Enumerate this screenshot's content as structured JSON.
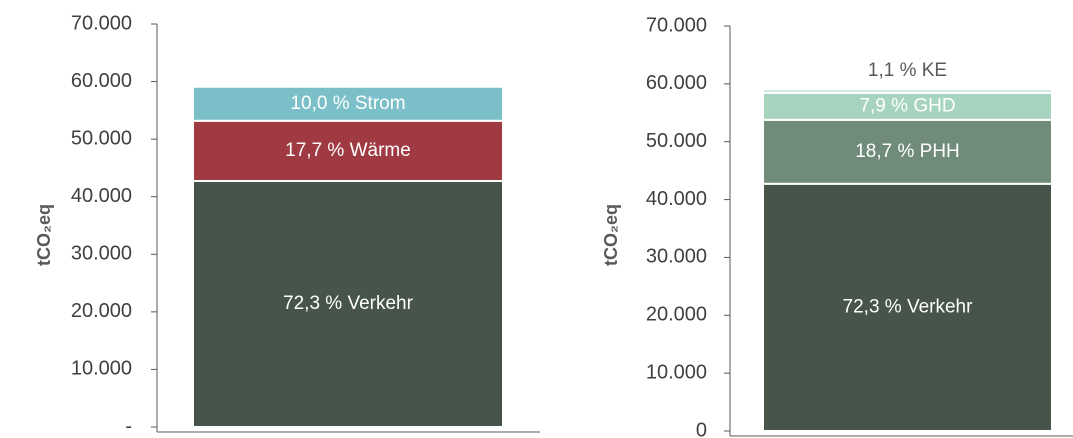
{
  "chart_data": [
    {
      "type": "stacked-bar",
      "y_label": "tCO₂eq",
      "categories": [
        null
      ],
      "ylim": [
        0,
        70000
      ],
      "yticks": [
        {
          "value": 0,
          "label": "-"
        },
        {
          "value": 10000,
          "label": "10.000"
        },
        {
          "value": 20000,
          "label": "20.000"
        },
        {
          "value": 30000,
          "label": "30.000"
        },
        {
          "value": 40000,
          "label": "40.000"
        },
        {
          "value": 50000,
          "label": "50.000"
        },
        {
          "value": 60000,
          "label": "60.000"
        },
        {
          "value": 70000,
          "label": "70.000"
        }
      ],
      "series": [
        {
          "name": "Verkehr",
          "color": "#46544a",
          "values": [
            42730
          ],
          "value_labels": [
            "72,3 % Verkehr"
          ]
        },
        {
          "name": "Wärme",
          "color": "#a03a42",
          "values": [
            10460
          ],
          "value_labels": [
            "17,7 % Wärme"
          ]
        },
        {
          "name": "Strom",
          "color": "#7bbfc8",
          "values": [
            5910
          ],
          "value_labels": [
            "10,0 % Strom"
          ]
        }
      ]
    },
    {
      "type": "stacked-bar",
      "y_label": "tCO₂eq",
      "categories": [
        null
      ],
      "ylim": [
        0,
        70000
      ],
      "yticks": [
        0,
        {
          "value": 10000,
          "label": "10.000"
        },
        {
          "value": 20000,
          "label": "20.000"
        },
        {
          "value": 30000,
          "label": "30.000"
        },
        {
          "value": 40000,
          "label": "40.000"
        },
        {
          "value": 50000,
          "label": "50.000"
        },
        {
          "value": 60000,
          "label": "60.000"
        },
        {
          "value": 70000,
          "label": "70.000"
        }
      ],
      "series": [
        {
          "name": "Verkehr",
          "color": "#46544a",
          "values": [
            42730
          ],
          "value_labels": [
            "72,3 % Verkehr"
          ]
        },
        {
          "name": "PHH",
          "color": "#708b7a",
          "values": [
            11050
          ],
          "value_labels": [
            "18,7 % PHH"
          ]
        },
        {
          "name": "GHD",
          "color": "#a6d4bf",
          "values": [
            4670
          ],
          "value_labels": [
            "7,9 % GHD"
          ]
        },
        {
          "name": "KE",
          "color": "#c9e6da",
          "values": [
            650
          ],
          "value_labels": [
            "1,1 % KE"
          ]
        }
      ]
    }
  ]
}
